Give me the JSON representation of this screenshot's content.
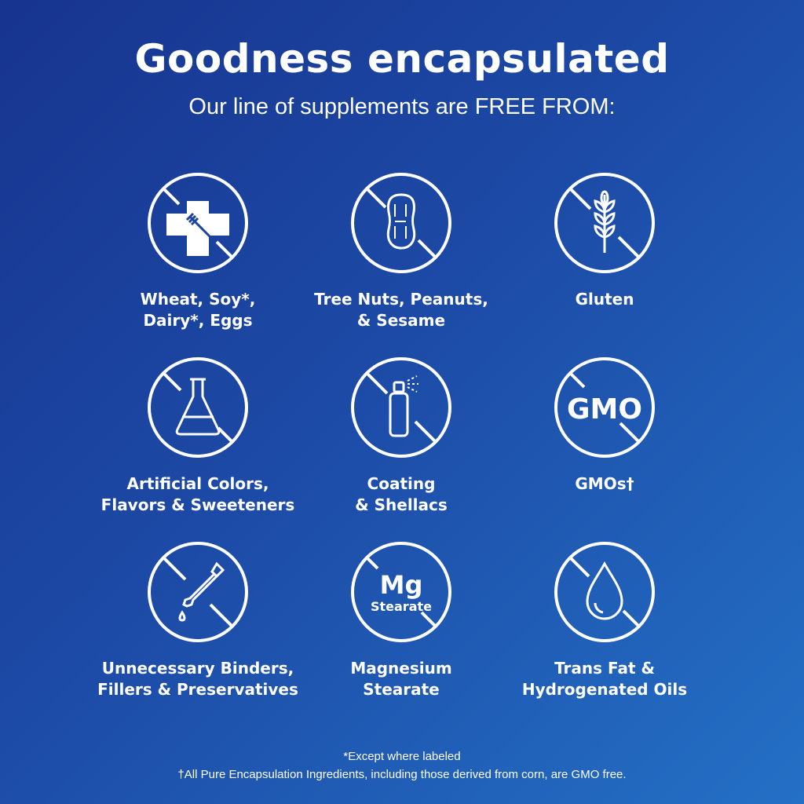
{
  "header": {
    "title": "Goodness encapsulated",
    "subtitle": "Our line of supplements are FREE FROM:"
  },
  "items": [
    {
      "icon": "allergen-cross-fork-icon",
      "label": "Wheat, Soy*,\nDairy*, Eggs"
    },
    {
      "icon": "peanut-icon",
      "label": "Tree Nuts, Peanuts,\n& Sesame"
    },
    {
      "icon": "wheat-icon",
      "label": "Gluten"
    },
    {
      "icon": "flask-icon",
      "label": "Artificial Colors,\nFlavors & Sweeteners"
    },
    {
      "icon": "spray-can-icon",
      "label": "Coating\n& Shellacs"
    },
    {
      "icon": "gmo-icon",
      "icon_text": "GMO",
      "label": "GMOs†"
    },
    {
      "icon": "dropper-icon",
      "label": "Unnecessary Binders,\nFillers & Preservatives"
    },
    {
      "icon": "mg-stearate-icon",
      "icon_text": "Mg",
      "icon_subtext": "Stearate",
      "label": "Magnesium\nStearate"
    },
    {
      "icon": "oil-drop-icon",
      "label": "Trans Fat &\nHydrogenated Oils"
    }
  ],
  "footer": {
    "note1": "*Except where labeled",
    "note2": "†All Pure Encapsulation Ingredients, including those derived from corn, are GMO free."
  },
  "colors": {
    "gradient_start": "#17348f",
    "gradient_end": "#2470c6",
    "foreground": "#ffffff"
  }
}
